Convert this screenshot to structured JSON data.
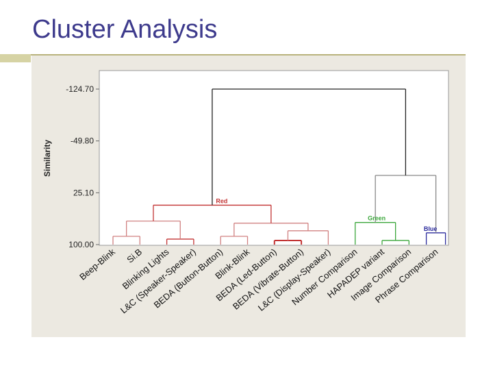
{
  "slide": {
    "title": "Cluster Analysis"
  },
  "chart_data": {
    "type": "dendrogram",
    "ylabel": "Similarity",
    "yticks": [
      "-124.70",
      "-49.80",
      "25.10",
      "100.00"
    ],
    "ylim": [
      -124.7,
      100.0
    ],
    "y_inverted": true,
    "leaves": [
      "Beep-Blink",
      "Si.B",
      "Blinking Lights",
      "L&C (Speaker-Speaker)",
      "BEDA (Button-Button)",
      "Blink-Blink",
      "BEDA (Led-Button)",
      "BEDA (Vibrate-Button)",
      "L&C (Display-Speaker)",
      "Number Comparison",
      "HAPADEP variant",
      "Image Comparison",
      "Phrase Comparison"
    ],
    "clusters": [
      {
        "name": "Red",
        "color": "#c23232",
        "leaves": [
          0,
          1,
          2,
          3,
          4,
          5,
          6,
          7,
          8
        ]
      },
      {
        "name": "Green",
        "color": "#3aa63a",
        "leaves": [
          9,
          10,
          11
        ]
      },
      {
        "name": "Blue",
        "color": "#2a2a9c",
        "leaves": [
          12
        ]
      }
    ],
    "merges": [
      {
        "left": "L0",
        "right": "L1",
        "similarity": 88.0,
        "color": "#d08080"
      },
      {
        "left": "L2",
        "right": "L3",
        "similarity": 92.0,
        "color": "#c23232"
      },
      {
        "left": "L4",
        "right": "L5",
        "similarity": 88.0,
        "color": "#d08080"
      },
      {
        "left": "L6",
        "right": "L7",
        "similarity": 94.0,
        "color": "#c23232"
      },
      {
        "left": "M3",
        "right": "L8",
        "similarity": 80.0,
        "color": "#d08080"
      },
      {
        "left": "M2",
        "right": "M4",
        "similarity": 69.0,
        "color": "#d08080"
      },
      {
        "left": "M0",
        "right": "M1",
        "similarity": 66.0,
        "color": "#d08080"
      },
      {
        "left": "M6",
        "right": "M5",
        "similarity": 43.0,
        "color": "#c23232"
      },
      {
        "left": "L10",
        "right": "L11",
        "similarity": 94.0,
        "color": "#3aa63a"
      },
      {
        "left": "L9",
        "right": "M8",
        "similarity": 68.0,
        "color": "#3aa63a"
      },
      {
        "left": "L12",
        "right": "M9_none",
        "similarity": 0,
        "color": "#2a2a9c"
      }
    ],
    "top_links": [
      {
        "note": "Green+Blue",
        "similarity": 0.0
      },
      {
        "note": "all",
        "similarity": -124.7
      }
    ],
    "cluster_labels": [
      {
        "text": "Red",
        "color": "#c23232"
      },
      {
        "text": "Green",
        "color": "#3aa63a"
      },
      {
        "text": "Blue",
        "color": "#2a2a9c"
      }
    ]
  }
}
